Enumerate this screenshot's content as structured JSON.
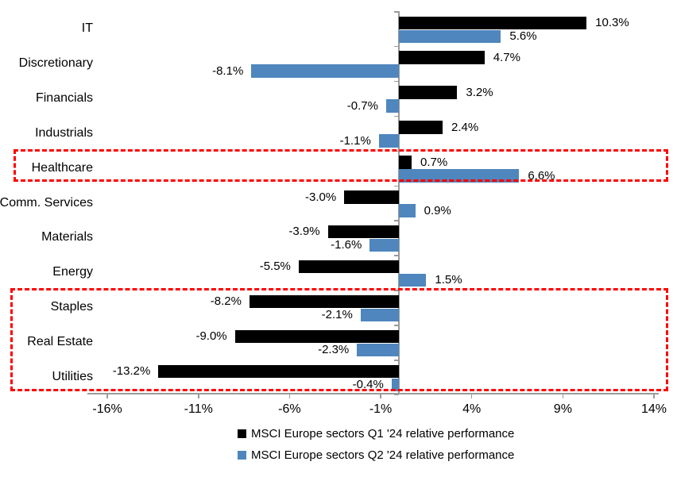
{
  "chart_data": {
    "type": "bar",
    "orientation": "horizontal",
    "title": "",
    "value_unit": "%",
    "categories": [
      "IT",
      "Discretionary",
      "Financials",
      "Industrials",
      "Healthcare",
      "Comm. Services",
      "Materials",
      "Energy",
      "Staples",
      "Real Estate",
      "Utilities"
    ],
    "series": [
      {
        "name": "MSCI Europe sectors Q1 '24 relative performance",
        "color": "#000000",
        "values": [
          10.3,
          4.7,
          3.2,
          2.4,
          0.7,
          -3.0,
          -3.9,
          -5.5,
          -8.2,
          -9.0,
          -13.2
        ],
        "labels": [
          "10.3%",
          "4.7%",
          "3.2%",
          "2.4%",
          "0.7%",
          "-3.0%",
          "-3.9%",
          "-5.5%",
          "-8.2%",
          "-9.0%",
          "-13.2%"
        ]
      },
      {
        "name": "MSCI Europe sectors Q2 '24 relative performance",
        "color": "#4F86BD",
        "values": [
          5.6,
          -8.1,
          -0.7,
          -1.1,
          6.6,
          0.9,
          -1.6,
          1.5,
          -2.1,
          -2.3,
          -0.4
        ],
        "labels": [
          "5.6%",
          "-8.1%",
          "-0.7%",
          "-1.1%",
          "6.6%",
          "0.9%",
          "-1.6%",
          "1.5%",
          "-2.1%",
          "-2.3%",
          "-0.4%"
        ]
      }
    ],
    "x_axis": {
      "tick_labels": [
        "-16%",
        "-11%",
        "-6%",
        "-1%",
        "4%",
        "9%",
        "14%"
      ],
      "tick_values": [
        -16,
        -11,
        -6,
        -1,
        4,
        9,
        14
      ],
      "range": [
        -17.1,
        14.3
      ],
      "grid": false
    },
    "legend": {
      "position": "bottom",
      "entries": [
        "MSCI Europe sectors Q1 '24 relative performance",
        "MSCI Europe sectors Q2 '24 relative performance"
      ]
    },
    "highlights": [
      {
        "categories": [
          "Healthcare"
        ],
        "color": "#FE0000",
        "style": "dashed"
      },
      {
        "categories": [
          "Staples",
          "Real Estate",
          "Utilities"
        ],
        "color": "#FE0000",
        "style": "dashed"
      }
    ],
    "axis_color": "#9A9A9A"
  }
}
